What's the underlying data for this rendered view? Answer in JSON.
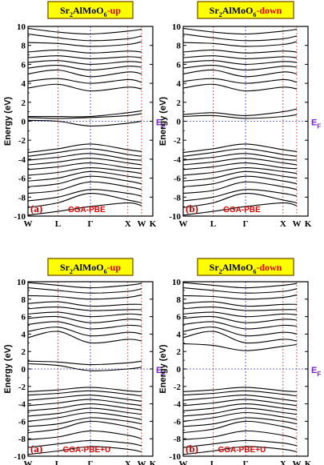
{
  "colors": {
    "title_bg": "#ffff00",
    "title_border": "#8a6d00",
    "title_text": "#000000",
    "spin_text": "#e00000",
    "band": "#000000",
    "fermi_line": "#3b3bd8",
    "hsym_line_gamma": "#3b3bd8",
    "hsym_line_other": "#d84040",
    "ef_label": "#7a1fd0",
    "method_text": "#e00000"
  },
  "chart_data": [
    {
      "type": "line",
      "title": {
        "formula_base": "Sr",
        "sub1": "2",
        "mid": "AlMoO",
        "sub2": "6",
        "spin": "-up"
      },
      "ylabel": "Energy (eV)",
      "ylim": [
        -10,
        10
      ],
      "yticks": [
        -10,
        -8,
        -6,
        -4,
        -2,
        0,
        2,
        4,
        6,
        8,
        10
      ],
      "xticks": [
        "W",
        "L",
        "Γ",
        "X",
        "W",
        "K"
      ],
      "kpath": [
        0,
        0.24,
        0.5,
        0.8,
        0.91,
        1.0
      ],
      "fermi_level": 0,
      "fermi_label": {
        "base": "E",
        "sub": "F"
      },
      "panel_label": "(a)",
      "method_label": "GGA-PBE",
      "series": [
        {
          "values": [
            -9.9,
            -9.5,
            -9.0,
            -8.6,
            -8.9
          ]
        },
        {
          "values": [
            -9.1,
            -8.6,
            -7.6,
            -8.3,
            -8.6
          ]
        },
        {
          "values": [
            -8.4,
            -8.0,
            -7.2,
            -7.6,
            -7.9
          ]
        },
        {
          "values": [
            -7.6,
            -7.3,
            -6.4,
            -6.9,
            -7.2
          ]
        },
        {
          "values": [
            -6.9,
            -6.6,
            -5.8,
            -6.3,
            -6.6
          ]
        },
        {
          "values": [
            -6.3,
            -6.0,
            -5.3,
            -5.8,
            -6.0
          ]
        },
        {
          "values": [
            -5.7,
            -5.4,
            -4.9,
            -5.3,
            -5.5
          ]
        },
        {
          "values": [
            -5.1,
            -4.8,
            -4.4,
            -4.9,
            -5.0
          ]
        },
        {
          "values": [
            -4.6,
            -4.3,
            -3.9,
            -4.4,
            -4.6
          ]
        },
        {
          "values": [
            -4.1,
            -3.8,
            -3.4,
            -4.0,
            -4.1
          ]
        },
        {
          "values": [
            -3.7,
            -3.3,
            -2.9,
            -3.5,
            -3.7
          ]
        },
        {
          "values": [
            -3.3,
            -2.9,
            -2.4,
            -3.0,
            -3.2
          ]
        },
        {
          "values": [
            0.1,
            0.0,
            -0.5,
            -0.2,
            0.0
          ]
        },
        {
          "values": [
            0.4,
            0.3,
            0.4,
            0.6,
            0.8
          ]
        },
        {
          "values": [
            0.5,
            0.5,
            0.5,
            0.9,
            1.1
          ]
        },
        {
          "values": [
            3.5,
            3.9,
            3.2,
            3.6,
            3.4
          ]
        },
        {
          "values": [
            4.2,
            4.5,
            4.0,
            4.4,
            4.1
          ]
        },
        {
          "values": [
            5.0,
            5.4,
            4.7,
            5.2,
            5.0
          ]
        },
        {
          "values": [
            5.6,
            5.9,
            5.4,
            5.8,
            5.7
          ]
        },
        {
          "values": [
            6.2,
            6.4,
            6.0,
            6.3,
            6.2
          ]
        },
        {
          "values": [
            6.7,
            6.9,
            6.6,
            6.8,
            6.7
          ]
        },
        {
          "values": [
            7.3,
            7.5,
            7.2,
            7.4,
            7.3
          ]
        },
        {
          "values": [
            8.3,
            8.2,
            7.9,
            8.1,
            8.4
          ]
        },
        {
          "values": [
            9.2,
            8.8,
            8.5,
            8.7,
            9.0
          ]
        },
        {
          "values": [
            9.8,
            9.4,
            9.2,
            9.5,
            9.7
          ]
        }
      ]
    },
    {
      "type": "line",
      "title": {
        "formula_base": "Sr",
        "sub1": "2",
        "mid": "AlMoO",
        "sub2": "6",
        "spin": "-down"
      },
      "ylabel": "Energy (eV)",
      "ylim": [
        -10,
        10
      ],
      "yticks": [
        -10,
        -8,
        -6,
        -4,
        -2,
        0,
        2,
        4,
        6,
        8,
        10
      ],
      "xticks": [
        "W",
        "L",
        "Γ",
        "X",
        "W",
        "K"
      ],
      "kpath": [
        0,
        0.24,
        0.5,
        0.8,
        0.91,
        1.0
      ],
      "fermi_level": 0,
      "fermi_label": {
        "base": "E",
        "sub": "F"
      },
      "panel_label": "(b)",
      "method_label": "GGA-PBE",
      "series": [
        {
          "values": [
            -9.9,
            -9.5,
            -9.0,
            -8.6,
            -8.9
          ]
        },
        {
          "values": [
            -9.1,
            -8.6,
            -7.6,
            -8.3,
            -8.6
          ]
        },
        {
          "values": [
            -8.4,
            -8.0,
            -7.2,
            -7.6,
            -7.9
          ]
        },
        {
          "values": [
            -7.6,
            -7.3,
            -6.4,
            -6.9,
            -7.2
          ]
        },
        {
          "values": [
            -6.9,
            -6.6,
            -5.8,
            -6.3,
            -6.6
          ]
        },
        {
          "values": [
            -6.3,
            -6.0,
            -5.3,
            -5.8,
            -6.0
          ]
        },
        {
          "values": [
            -5.7,
            -5.4,
            -4.9,
            -5.3,
            -5.5
          ]
        },
        {
          "values": [
            -5.1,
            -4.8,
            -4.4,
            -4.9,
            -5.0
          ]
        },
        {
          "values": [
            -4.6,
            -4.3,
            -3.9,
            -4.4,
            -4.6
          ]
        },
        {
          "values": [
            -4.1,
            -3.8,
            -3.4,
            -4.0,
            -4.1
          ]
        },
        {
          "values": [
            -3.7,
            -3.3,
            -2.9,
            -3.5,
            -3.7
          ]
        },
        {
          "values": [
            -3.3,
            -2.9,
            -2.4,
            -3.0,
            -3.2
          ]
        },
        {
          "values": [
            0.5,
            0.6,
            0.3,
            0.5,
            0.7
          ]
        },
        {
          "values": [
            0.7,
            0.9,
            0.6,
            1.0,
            1.3
          ]
        },
        {
          "values": [
            3.5,
            3.9,
            3.2,
            3.6,
            3.4
          ]
        },
        {
          "values": [
            4.2,
            4.5,
            4.0,
            4.4,
            4.1
          ]
        },
        {
          "values": [
            5.0,
            5.4,
            4.7,
            5.2,
            5.0
          ]
        },
        {
          "values": [
            5.6,
            5.9,
            5.4,
            5.8,
            5.7
          ]
        },
        {
          "values": [
            6.2,
            6.4,
            6.0,
            6.3,
            6.2
          ]
        },
        {
          "values": [
            6.7,
            6.9,
            6.6,
            6.8,
            6.7
          ]
        },
        {
          "values": [
            7.3,
            7.5,
            7.2,
            7.4,
            7.3
          ]
        },
        {
          "values": [
            8.3,
            8.2,
            7.9,
            8.1,
            8.4
          ]
        },
        {
          "values": [
            9.2,
            8.8,
            8.5,
            8.7,
            9.0
          ]
        },
        {
          "values": [
            9.8,
            9.4,
            9.2,
            9.5,
            9.7
          ]
        }
      ]
    },
    {
      "type": "line",
      "title": {
        "formula_base": "Sr",
        "sub1": "2",
        "mid": "AlMoO",
        "sub2": "6",
        "spin": "-up"
      },
      "ylabel": "Energy (eV)",
      "ylim": [
        -10,
        10
      ],
      "yticks": [
        -10,
        -8,
        -6,
        -4,
        -2,
        0,
        2,
        4,
        6,
        8,
        10
      ],
      "xticks": [
        "W",
        "L",
        "Γ",
        "X",
        "W",
        "K"
      ],
      "kpath": [
        0,
        0.24,
        0.5,
        0.8,
        0.91,
        1.0
      ],
      "fermi_level": 0,
      "fermi_label": {
        "base": "E",
        "sub": "F"
      },
      "panel_label": "(a)",
      "method_label": "GGA-PBE+U",
      "series": [
        {
          "values": [
            -9.8,
            -9.4,
            -8.9,
            -9.2,
            -9.5
          ]
        },
        {
          "values": [
            -9.0,
            -8.6,
            -8.2,
            -8.5,
            -8.8
          ]
        },
        {
          "values": [
            -8.1,
            -7.8,
            -7.1,
            -7.6,
            -8.0
          ]
        },
        {
          "values": [
            -7.3,
            -6.9,
            -6.0,
            -6.6,
            -7.0
          ]
        },
        {
          "values": [
            -6.6,
            -6.3,
            -5.6,
            -6.0,
            -6.3
          ]
        },
        {
          "values": [
            -6.0,
            -5.6,
            -5.0,
            -5.5,
            -5.8
          ]
        },
        {
          "values": [
            -5.4,
            -5.1,
            -4.5,
            -5.0,
            -5.2
          ]
        },
        {
          "values": [
            -4.8,
            -4.5,
            -4.0,
            -4.5,
            -4.7
          ]
        },
        {
          "values": [
            -4.2,
            -3.9,
            -3.5,
            -4.0,
            -4.2
          ]
        },
        {
          "values": [
            -3.6,
            -3.3,
            -3.0,
            -3.5,
            -3.7
          ]
        },
        {
          "values": [
            -3.0,
            -2.8,
            -2.5,
            -2.9,
            -3.1
          ]
        },
        {
          "values": [
            -2.6,
            -2.4,
            -2.1,
            -2.5,
            -2.6
          ]
        },
        {
          "values": [
            0.6,
            0.4,
            -0.2,
            0.0,
            0.2
          ]
        },
        {
          "values": [
            0.9,
            0.8,
            0.5,
            0.7,
            0.9
          ]
        },
        {
          "values": [
            3.6,
            4.3,
            3.0,
            3.4,
            3.2
          ]
        },
        {
          "values": [
            4.3,
            4.8,
            3.8,
            4.2,
            4.0
          ]
        },
        {
          "values": [
            5.1,
            5.4,
            4.6,
            5.0,
            4.9
          ]
        },
        {
          "values": [
            5.8,
            6.0,
            5.3,
            5.7,
            5.6
          ]
        },
        {
          "values": [
            6.3,
            6.5,
            6.0,
            6.3,
            6.2
          ]
        },
        {
          "values": [
            6.9,
            7.1,
            6.7,
            6.8,
            6.8
          ]
        },
        {
          "values": [
            7.5,
            7.7,
            7.2,
            7.4,
            7.4
          ]
        },
        {
          "values": [
            8.4,
            8.3,
            8.0,
            8.2,
            8.5
          ]
        },
        {
          "values": [
            9.3,
            9.0,
            8.7,
            8.9,
            9.2
          ]
        },
        {
          "values": [
            9.9,
            9.6,
            9.3,
            9.6,
            9.8
          ]
        }
      ]
    },
    {
      "type": "line",
      "title": {
        "formula_base": "Sr",
        "sub1": "2",
        "mid": "AlMoO",
        "sub2": "6",
        "spin": "-down"
      },
      "ylabel": "Energy (eV)",
      "ylim": [
        -10,
        10
      ],
      "yticks": [
        -10,
        -8,
        -6,
        -4,
        -2,
        0,
        2,
        4,
        6,
        8,
        10
      ],
      "xticks": [
        "W",
        "L",
        "Γ",
        "X",
        "W",
        "K"
      ],
      "kpath": [
        0,
        0.24,
        0.5,
        0.8,
        0.91,
        1.0
      ],
      "fermi_level": 0,
      "fermi_label": {
        "base": "E",
        "sub": "F"
      },
      "panel_label": "(b)",
      "method_label": "GGA-PBE+U",
      "series": [
        {
          "values": [
            -9.8,
            -9.4,
            -8.9,
            -9.2,
            -9.5
          ]
        },
        {
          "values": [
            -9.0,
            -8.6,
            -8.2,
            -8.5,
            -8.8
          ]
        },
        {
          "values": [
            -8.1,
            -7.8,
            -7.1,
            -7.6,
            -8.0
          ]
        },
        {
          "values": [
            -7.3,
            -6.9,
            -6.0,
            -6.6,
            -7.0
          ]
        },
        {
          "values": [
            -6.6,
            -6.3,
            -5.6,
            -6.0,
            -6.3
          ]
        },
        {
          "values": [
            -6.0,
            -5.6,
            -5.0,
            -5.5,
            -5.8
          ]
        },
        {
          "values": [
            -5.4,
            -5.1,
            -4.5,
            -5.0,
            -5.2
          ]
        },
        {
          "values": [
            -4.8,
            -4.5,
            -4.0,
            -4.5,
            -4.7
          ]
        },
        {
          "values": [
            -4.2,
            -3.9,
            -3.5,
            -4.0,
            -4.2
          ]
        },
        {
          "values": [
            -3.6,
            -3.3,
            -3.0,
            -3.5,
            -3.7
          ]
        },
        {
          "values": [
            -3.0,
            -2.8,
            -2.5,
            -2.9,
            -3.1
          ]
        },
        {
          "values": [
            -2.6,
            -2.4,
            -2.1,
            -2.5,
            -2.6
          ]
        },
        {
          "values": [
            2.9,
            2.7,
            2.1,
            2.6,
            2.8
          ]
        },
        {
          "values": [
            3.6,
            4.3,
            3.0,
            3.4,
            3.2
          ]
        },
        {
          "values": [
            4.3,
            4.8,
            3.8,
            4.2,
            4.0
          ]
        },
        {
          "values": [
            5.1,
            5.4,
            4.6,
            5.0,
            4.9
          ]
        },
        {
          "values": [
            5.8,
            6.0,
            5.3,
            5.7,
            5.6
          ]
        },
        {
          "values": [
            6.3,
            6.5,
            6.0,
            6.3,
            6.2
          ]
        },
        {
          "values": [
            6.9,
            7.1,
            6.7,
            6.8,
            6.8
          ]
        },
        {
          "values": [
            7.5,
            7.7,
            7.2,
            7.4,
            7.4
          ]
        },
        {
          "values": [
            8.4,
            8.3,
            8.0,
            8.2,
            8.5
          ]
        },
        {
          "values": [
            9.3,
            9.0,
            8.7,
            8.9,
            9.2
          ]
        },
        {
          "values": [
            9.9,
            9.6,
            9.3,
            9.6,
            9.8
          ]
        }
      ]
    }
  ]
}
